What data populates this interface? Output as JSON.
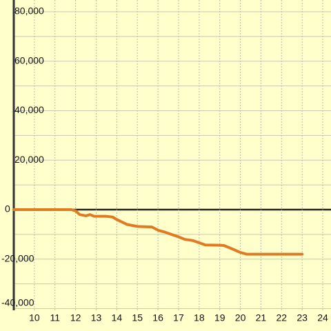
{
  "chart_data": {
    "type": "line",
    "x": [
      9,
      11.8,
      12,
      12.2,
      12.5,
      12.7,
      12.9,
      13.5,
      13.8,
      14,
      14.5,
      15,
      15.7,
      16,
      16.3,
      17,
      17.3,
      17.7,
      18.3,
      19,
      19.2,
      19.5,
      20,
      20.3,
      23
    ],
    "series": [
      {
        "color": "#e07b24",
        "values": [
          0,
          0,
          -500,
          -2000,
          -2500,
          -2000,
          -2700,
          -2700,
          -3000,
          -4000,
          -6000,
          -6800,
          -7000,
          -8300,
          -9000,
          -11000,
          -12000,
          -12500,
          -14300,
          -14400,
          -14500,
          -15500,
          -17300,
          -18000,
          -18000
        ]
      }
    ],
    "xlim": [
      9,
      24.4
    ],
    "ylim": [
      -40000,
      80000
    ],
    "xticks": [
      10,
      11,
      12,
      13,
      14,
      15,
      16,
      17,
      18,
      19,
      20,
      21,
      22,
      23,
      24
    ],
    "yticks": [
      {
        "value": 80000,
        "label": "80,000"
      },
      {
        "value": 60000,
        "label": "60,000"
      },
      {
        "value": 40000,
        "label": "40,000"
      },
      {
        "value": 20000,
        "label": "20,000"
      },
      0,
      {
        "value": -20000,
        "label": "-20,000"
      },
      {
        "value": -40000,
        "label": "-40,000"
      }
    ],
    "yminor": [
      70000,
      50000,
      30000,
      10000,
      -10000,
      -30000
    ],
    "grid": true
  }
}
